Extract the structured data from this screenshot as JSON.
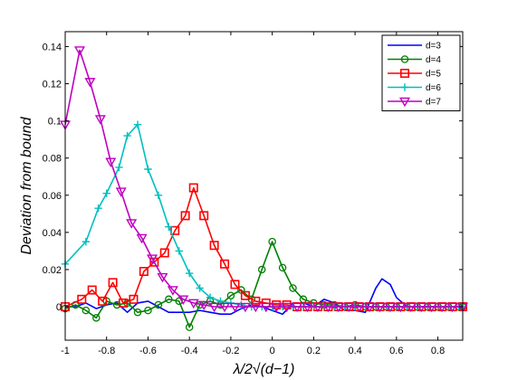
{
  "chart_data": {
    "type": "line",
    "xlabel": "λ/2√(d−1)",
    "ylabel": "Deviation from bound",
    "xlim": [
      -1.0,
      0.92
    ],
    "ylim": [
      -0.018,
      0.148
    ],
    "x_ticks": [
      -1,
      -0.8,
      -0.6,
      -0.4,
      -0.2,
      0,
      0.2,
      0.4,
      0.6,
      0.8
    ],
    "x_tick_labels": [
      "-1",
      "-0.8",
      "-0.6",
      "-0.4",
      "-0.2",
      "0",
      "0.2",
      "0.4",
      "0.6",
      "0.8"
    ],
    "y_ticks": [
      0,
      0.02,
      0.04,
      0.06,
      0.08,
      0.1,
      0.12,
      0.14
    ],
    "y_tick_labels": [
      "0",
      "0.02",
      "0.04",
      "0.06",
      "0.08",
      "0.1",
      "0.12",
      "0.14"
    ],
    "legend_position": "top-right",
    "grid": false,
    "series": [
      {
        "name": "d=3",
        "color": "#0000ff",
        "marker": "none",
        "x": [
          -1.0,
          -0.95,
          -0.9,
          -0.85,
          -0.8,
          -0.75,
          -0.7,
          -0.65,
          -0.6,
          -0.55,
          -0.5,
          -0.45,
          -0.4,
          -0.35,
          -0.3,
          -0.25,
          -0.2,
          -0.15,
          -0.1,
          -0.05,
          0.0,
          0.05,
          0.1,
          0.15,
          0.2,
          0.25,
          0.3,
          0.35,
          0.4,
          0.45,
          0.5,
          0.53,
          0.57,
          0.6,
          0.65,
          0.7,
          0.75,
          0.8,
          0.85,
          0.9,
          0.92
        ],
        "y": [
          0.0,
          0.0,
          0.002,
          -0.001,
          0.001,
          0.002,
          -0.003,
          0.002,
          0.003,
          0.0,
          -0.003,
          -0.003,
          -0.003,
          -0.002,
          -0.003,
          -0.004,
          -0.004,
          -0.001,
          0.001,
          0.0,
          -0.002,
          -0.004,
          0.002,
          0.002,
          0.0,
          0.004,
          0.002,
          -0.002,
          -0.002,
          -0.003,
          0.01,
          0.015,
          0.012,
          0.005,
          0.0,
          0.0,
          0.0,
          0.0,
          0.0,
          0.0,
          0.0
        ]
      },
      {
        "name": "d=4",
        "color": "#008000",
        "marker": "circle",
        "x": [
          -1.0,
          -0.95,
          -0.9,
          -0.85,
          -0.8,
          -0.75,
          -0.7,
          -0.65,
          -0.6,
          -0.55,
          -0.5,
          -0.45,
          -0.4,
          -0.35,
          -0.3,
          -0.25,
          -0.2,
          -0.15,
          -0.1,
          -0.05,
          0.0,
          0.05,
          0.1,
          0.15,
          0.2,
          0.25,
          0.3,
          0.35,
          0.4,
          0.45,
          0.5,
          0.55,
          0.6,
          0.65,
          0.7,
          0.75,
          0.8,
          0.85,
          0.9,
          0.92
        ],
        "y": [
          -0.001,
          0.001,
          -0.002,
          -0.006,
          0.003,
          0.001,
          0.002,
          -0.003,
          -0.002,
          0.001,
          0.004,
          0.003,
          -0.011,
          0.001,
          0.003,
          0.001,
          0.006,
          0.009,
          0.004,
          0.02,
          0.035,
          0.021,
          0.01,
          0.004,
          0.002,
          0.001,
          0.001,
          0.0,
          0.001,
          0.0,
          0.0,
          0.0,
          0.0,
          0.0,
          0.0,
          0.0,
          0.0,
          0.0,
          0.0,
          0.0
        ]
      },
      {
        "name": "d=5",
        "color": "#ff0000",
        "marker": "square",
        "x": [
          -1.0,
          -0.92,
          -0.87,
          -0.82,
          -0.77,
          -0.72,
          -0.67,
          -0.62,
          -0.57,
          -0.52,
          -0.47,
          -0.42,
          -0.38,
          -0.33,
          -0.28,
          -0.23,
          -0.18,
          -0.13,
          -0.08,
          -0.03,
          0.02,
          0.07,
          0.12,
          0.17,
          0.22,
          0.27,
          0.32,
          0.37,
          0.42,
          0.47,
          0.52,
          0.57,
          0.62,
          0.67,
          0.72,
          0.77,
          0.82,
          0.87,
          0.92
        ],
        "y": [
          0.0,
          0.004,
          0.009,
          0.003,
          0.013,
          0.002,
          0.004,
          0.019,
          0.024,
          0.029,
          0.041,
          0.049,
          0.064,
          0.049,
          0.033,
          0.023,
          0.012,
          0.006,
          0.003,
          0.002,
          0.001,
          0.001,
          0.0,
          0.0,
          0.0,
          0.0,
          0.0,
          0.0,
          0.0,
          0.0,
          0.0,
          0.0,
          0.0,
          0.0,
          0.0,
          0.0,
          0.0,
          0.0,
          0.0
        ]
      },
      {
        "name": "d=6",
        "color": "#00bfbf",
        "marker": "plus",
        "x": [
          -1.0,
          -0.9,
          -0.84,
          -0.8,
          -0.74,
          -0.7,
          -0.65,
          -0.6,
          -0.55,
          -0.5,
          -0.45,
          -0.4,
          -0.35,
          -0.3,
          -0.25,
          -0.2,
          -0.15,
          -0.1,
          -0.05,
          0.0,
          0.05,
          0.1,
          0.15,
          0.2,
          0.25,
          0.3,
          0.35,
          0.4,
          0.45,
          0.5,
          0.55,
          0.6,
          0.65,
          0.7,
          0.75,
          0.8,
          0.85,
          0.9,
          0.92
        ],
        "y": [
          0.023,
          0.035,
          0.053,
          0.061,
          0.075,
          0.092,
          0.098,
          0.074,
          0.06,
          0.043,
          0.03,
          0.018,
          0.01,
          0.005,
          0.003,
          0.002,
          0.001,
          0.0,
          0.0,
          0.0,
          0.0,
          0.0,
          0.0,
          0.0,
          0.0,
          0.0,
          0.0,
          0.0,
          0.0,
          0.0,
          0.0,
          0.0,
          0.0,
          0.0,
          0.0,
          0.0,
          0.0,
          0.0,
          0.0
        ]
      },
      {
        "name": "d=7",
        "color": "#bf00bf",
        "marker": "triangle-down",
        "x": [
          -1.0,
          -0.93,
          -0.88,
          -0.83,
          -0.78,
          -0.73,
          -0.68,
          -0.63,
          -0.58,
          -0.53,
          -0.48,
          -0.43,
          -0.38,
          -0.33,
          -0.28,
          -0.23,
          -0.18,
          -0.13,
          -0.08,
          -0.03,
          0.02,
          0.07,
          0.12,
          0.17,
          0.22,
          0.27,
          0.32,
          0.37,
          0.42,
          0.47,
          0.52,
          0.57,
          0.62,
          0.67,
          0.72,
          0.77,
          0.82,
          0.87,
          0.92
        ],
        "y": [
          0.098,
          0.138,
          0.121,
          0.101,
          0.078,
          0.062,
          0.045,
          0.037,
          0.026,
          0.016,
          0.009,
          0.004,
          0.002,
          0.001,
          0.0,
          0.0,
          0.0,
          0.0,
          0.0,
          0.0,
          0.0,
          0.0,
          0.0,
          0.0,
          0.0,
          0.0,
          0.0,
          0.0,
          0.0,
          0.0,
          0.0,
          0.0,
          0.0,
          0.0,
          0.0,
          0.0,
          0.0,
          0.0,
          0.0
        ]
      }
    ]
  }
}
